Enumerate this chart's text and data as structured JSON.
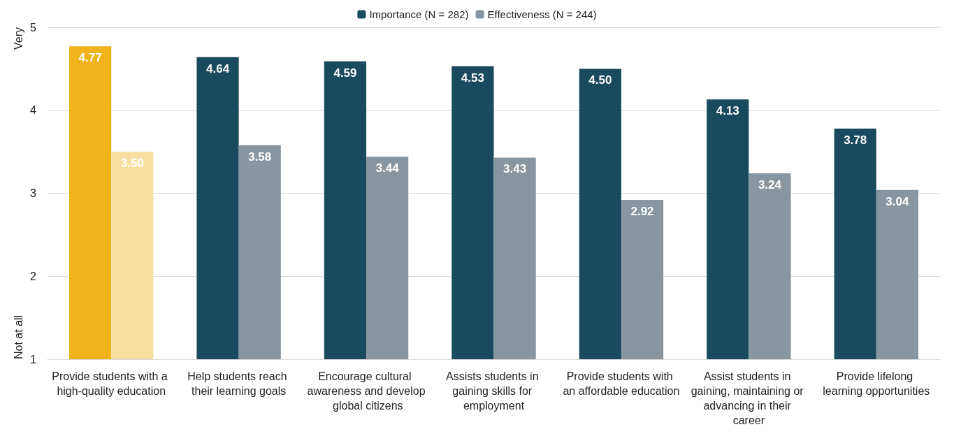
{
  "chart_data": {
    "type": "bar",
    "categories": [
      "Provide students with a high-quality education",
      "Help students reach their learning goals",
      "Encourage cultural awareness and develop global citizens",
      "Assists students in gaining skills for employment",
      "Provide students with an affordable education",
      "Assist students in gaining, maintaining or advancing in their career",
      "Provide lifelong learning opportunities"
    ],
    "series": [
      {
        "name": "Importance (N = 282)",
        "color": "#1a4a5e",
        "colors": [
          "#f0b31a",
          "#1a4a5e",
          "#1a4a5e",
          "#1a4a5e",
          "#1a4a5e",
          "#1a4a5e",
          "#1a4a5e"
        ],
        "values": [
          4.77,
          4.64,
          4.59,
          4.53,
          4.5,
          4.13,
          3.78
        ],
        "value_labels": [
          "4.77",
          "4.64",
          "4.59",
          "4.53",
          "4.50",
          "4.13",
          "3.78"
        ]
      },
      {
        "name": "Effectiveness (N = 244)",
        "color": "#8796a0",
        "colors": [
          "#f7dfa0",
          "#8796a0",
          "#8796a0",
          "#8796a0",
          "#8796a0",
          "#8796a0",
          "#8796a0"
        ],
        "values": [
          3.5,
          3.58,
          3.44,
          3.43,
          2.92,
          3.24,
          3.04
        ],
        "value_labels": [
          "3.50",
          "3.58",
          "3.44",
          "3.43",
          "2.92",
          "3.24",
          "3.04"
        ]
      }
    ],
    "ylim": [
      1,
      5
    ],
    "yticks": [
      1,
      2,
      3,
      4,
      5
    ],
    "grid": "y",
    "legend": "top",
    "annotations": [
      "Very",
      "Not at all"
    ]
  }
}
